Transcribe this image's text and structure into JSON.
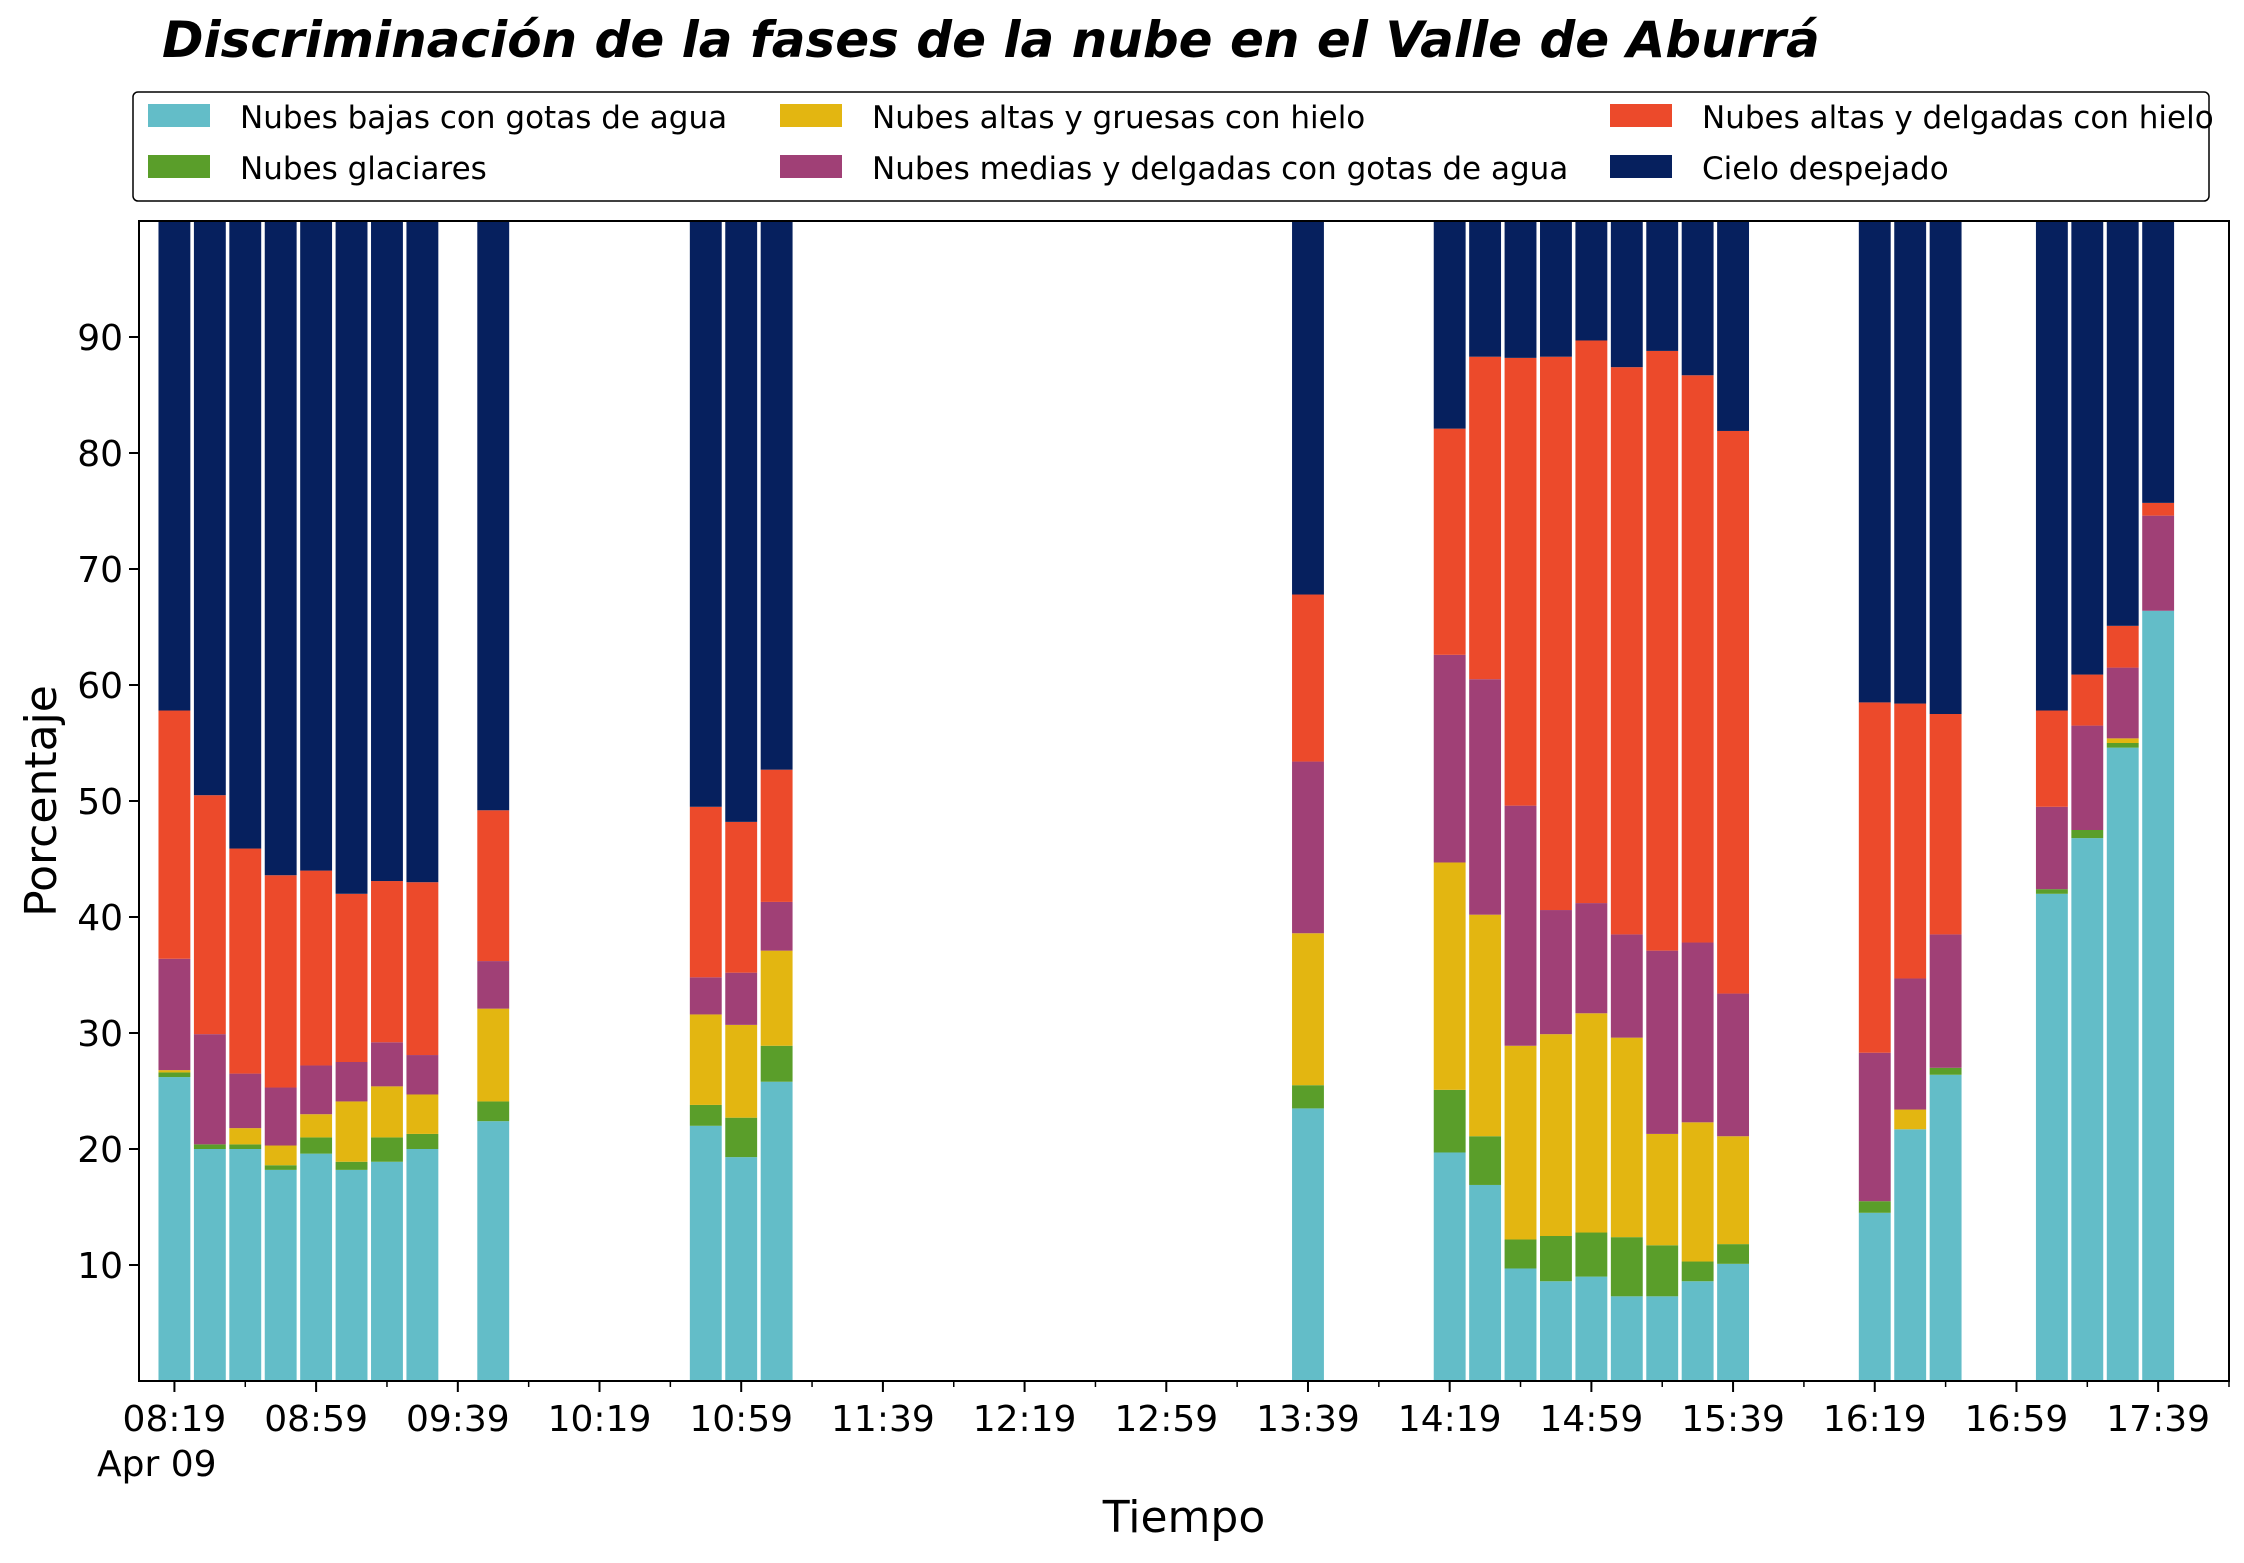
{
  "chart_data": {
    "type": "bar",
    "stacked": true,
    "title": "Discriminación de la fases de la nube en el Valle de Aburrá",
    "xlabel": "Tiempo",
    "ylabel": "Porcentaje",
    "ylim": [
      0,
      100
    ],
    "yticks": [
      10,
      20,
      30,
      40,
      50,
      60,
      70,
      80,
      90
    ],
    "xlim": [
      "08:09",
      "17:59"
    ],
    "xticks": [
      "08:19",
      "08:59",
      "09:39",
      "10:19",
      "10:59",
      "11:39",
      "12:19",
      "12:59",
      "13:39",
      "14:19",
      "14:59",
      "15:39",
      "16:19",
      "16:59",
      "17:39"
    ],
    "x_date_label": "Apr 09",
    "x_minor_tick_interval_minutes": 20,
    "bar_width_minutes": 9,
    "grid": false,
    "legend_placement": "top, above plot, 3 columns",
    "x": [
      "08:19",
      "08:29",
      "08:39",
      "08:49",
      "08:59",
      "09:09",
      "09:19",
      "09:29",
      "09:49",
      "10:49",
      "10:59",
      "11:09",
      "13:39",
      "14:19",
      "14:29",
      "14:39",
      "14:49",
      "14:59",
      "15:09",
      "15:19",
      "15:29",
      "15:39",
      "16:19",
      "16:29",
      "16:39",
      "17:09",
      "17:19",
      "17:29",
      "17:39"
    ],
    "series": [
      {
        "name": "Nubes bajas con gotas de agua",
        "color": "#63bdc8",
        "values": [
          26.2,
          20.0,
          20.0,
          18.2,
          19.6,
          18.2,
          18.9,
          20.0,
          22.4,
          22.0,
          19.3,
          25.8,
          23.5,
          19.7,
          16.9,
          9.7,
          8.6,
          9.0,
          7.3,
          7.3,
          8.6,
          10.1,
          14.5,
          21.7,
          26.4,
          42.0,
          46.8,
          54.6,
          66.4
        ]
      },
      {
        "name": "Nubes glaciares",
        "color": "#5a9e2a",
        "values": [
          0.4,
          0.4,
          0.4,
          0.4,
          1.4,
          0.7,
          2.1,
          1.3,
          1.7,
          1.8,
          3.4,
          3.1,
          2.0,
          5.4,
          4.2,
          2.5,
          3.9,
          3.8,
          5.1,
          4.4,
          1.7,
          1.7,
          1.0,
          0,
          0.6,
          0.4,
          0.7,
          0.4,
          0
        ]
      },
      {
        "name": "Nubes altas y gruesas con hielo",
        "color": "#e3b611",
        "values": [
          0.2,
          0,
          1.4,
          1.7,
          2.0,
          5.2,
          4.4,
          3.4,
          8.0,
          7.8,
          8.0,
          8.2,
          13.1,
          19.6,
          19.1,
          16.7,
          17.4,
          18.9,
          17.2,
          9.6,
          12.0,
          9.3,
          0,
          1.7,
          0,
          0,
          0,
          0.4,
          0
        ]
      },
      {
        "name": "Nubes medias y delgadas con gotas de agua",
        "color": "#a04076",
        "values": [
          9.6,
          9.5,
          4.7,
          5.0,
          4.2,
          3.4,
          3.8,
          3.4,
          4.1,
          3.2,
          4.5,
          4.2,
          14.8,
          17.9,
          20.3,
          20.7,
          10.7,
          9.5,
          8.9,
          15.8,
          15.5,
          12.3,
          12.8,
          11.3,
          11.5,
          7.1,
          9.0,
          6.1,
          8.2
        ]
      },
      {
        "name": "Nubes altas y delgadas con hielo",
        "color": "#ec4a2b",
        "values": [
          21.4,
          20.6,
          19.4,
          18.3,
          16.8,
          14.5,
          13.9,
          14.9,
          13.0,
          14.7,
          13.0,
          11.4,
          14.4,
          19.5,
          27.8,
          38.6,
          47.7,
          48.5,
          48.9,
          51.7,
          48.9,
          48.5,
          30.2,
          23.7,
          19.0,
          8.3,
          4.4,
          3.6,
          1.1
        ]
      },
      {
        "name": "Cielo despejado",
        "color": "#06205e",
        "values": [
          42.2,
          49.5,
          54.1,
          56.4,
          56.0,
          58.0,
          56.9,
          57.0,
          50.8,
          50.5,
          51.8,
          47.3,
          32.2,
          17.9,
          11.7,
          11.8,
          11.7,
          10.3,
          12.6,
          11.2,
          13.3,
          18.1,
          41.5,
          41.6,
          42.5,
          42.2,
          39.1,
          34.9,
          24.3
        ]
      }
    ]
  }
}
